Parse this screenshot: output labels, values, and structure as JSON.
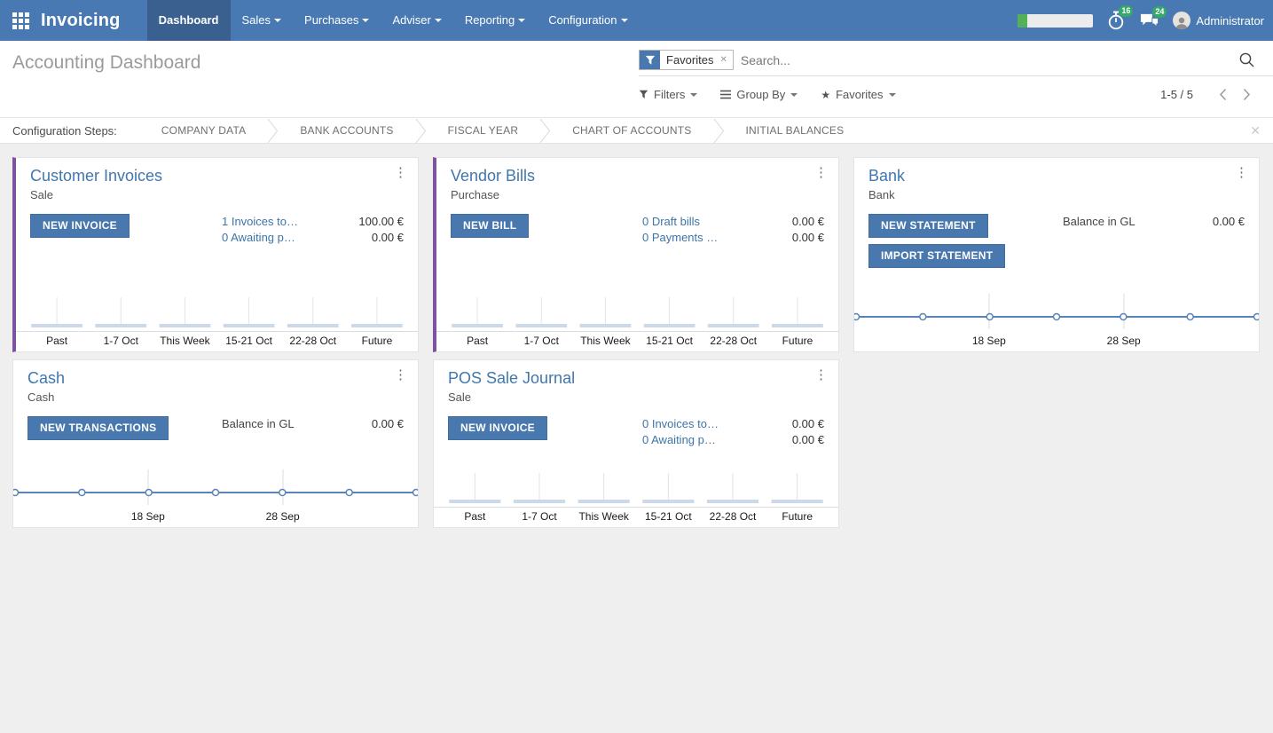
{
  "topbar": {
    "brand": "Invoicing",
    "menus": [
      {
        "label": "Dashboard",
        "active": true,
        "dropdown": false
      },
      {
        "label": "Sales",
        "active": false,
        "dropdown": true
      },
      {
        "label": "Purchases",
        "active": false,
        "dropdown": true
      },
      {
        "label": "Adviser",
        "active": false,
        "dropdown": true
      },
      {
        "label": "Reporting",
        "active": false,
        "dropdown": true
      },
      {
        "label": "Configuration",
        "active": false,
        "dropdown": true
      }
    ],
    "progress_pct": 13,
    "activity_badge": "16",
    "message_badge": "24",
    "user": "Administrator"
  },
  "control_panel": {
    "title": "Accounting Dashboard",
    "search_facet": "Favorites",
    "search_placeholder": "Search...",
    "filters_label": "Filters",
    "group_by_label": "Group By",
    "favorites_label": "Favorites",
    "pager": "1-5 / 5"
  },
  "config_steps": {
    "label": "Configuration Steps:",
    "steps": [
      "COMPANY DATA",
      "BANK ACCOUNTS",
      "FISCAL YEAR",
      "CHART OF ACCOUNTS",
      "INITIAL BALANCES"
    ]
  },
  "colors": {
    "navbar_blue": "#4979b2",
    "active_tab_blue": "#3a608f",
    "button_blue": "#4878ae",
    "accent_purple": "#7e52a0",
    "badge_green": "#35a968",
    "line_blue": "#5a83b8",
    "bar_fill": "#ccd9e9"
  },
  "cards": [
    {
      "row": 1,
      "accent": true,
      "title": "Customer Invoices",
      "subtitle": "Sale",
      "buttons": [
        "NEW INVOICE"
      ],
      "stats": [
        {
          "link": "1 Invoices to…",
          "amount": "100.00 €"
        },
        {
          "link": "0 Awaiting p…",
          "amount": "0.00 €"
        }
      ],
      "chart": {
        "type": "bar",
        "categories": [
          "Past",
          "1-7 Oct",
          "This Week",
          "15-21 Oct",
          "22-28 Oct",
          "Future"
        ],
        "values": [
          0,
          0,
          0,
          0,
          0,
          0
        ]
      }
    },
    {
      "row": 1,
      "accent": true,
      "title": "Vendor Bills",
      "subtitle": "Purchase",
      "buttons": [
        "NEW BILL"
      ],
      "stats": [
        {
          "link": "0 Draft bills",
          "amount": "0.00 €"
        },
        {
          "link": "0 Payments …",
          "amount": "0.00 €"
        }
      ],
      "chart": {
        "type": "bar",
        "categories": [
          "Past",
          "1-7 Oct",
          "This Week",
          "15-21 Oct",
          "22-28 Oct",
          "Future"
        ],
        "values": [
          0,
          0,
          0,
          0,
          0,
          0
        ]
      }
    },
    {
      "row": 1,
      "accent": false,
      "title": "Bank",
      "subtitle": "Bank",
      "buttons": [
        "NEW STATEMENT",
        "IMPORT STATEMENT"
      ],
      "balance": {
        "label": "Balance in GL",
        "amount": "0.00 €"
      },
      "chart": {
        "type": "line",
        "tick_labels": [
          "18 Sep",
          "28 Sep"
        ],
        "values": [
          0,
          0,
          0,
          0,
          0,
          0,
          0
        ]
      }
    },
    {
      "row": 2,
      "accent": false,
      "title": "Cash",
      "subtitle": "Cash",
      "buttons": [
        "NEW TRANSACTIONS"
      ],
      "balance": {
        "label": "Balance in GL",
        "amount": "0.00 €"
      },
      "chart": {
        "type": "line",
        "tick_labels": [
          "18 Sep",
          "28 Sep"
        ],
        "values": [
          0,
          0,
          0,
          0,
          0,
          0,
          0
        ]
      }
    },
    {
      "row": 2,
      "accent": false,
      "title": "POS Sale Journal",
      "subtitle": "Sale",
      "buttons": [
        "NEW INVOICE"
      ],
      "stats": [
        {
          "link": "0 Invoices to…",
          "amount": "0.00 €"
        },
        {
          "link": "0 Awaiting p…",
          "amount": "0.00 €"
        }
      ],
      "chart": {
        "type": "bar",
        "categories": [
          "Past",
          "1-7 Oct",
          "This Week",
          "15-21 Oct",
          "22-28 Oct",
          "Future"
        ],
        "values": [
          0,
          0,
          0,
          0,
          0,
          0
        ]
      }
    }
  ]
}
